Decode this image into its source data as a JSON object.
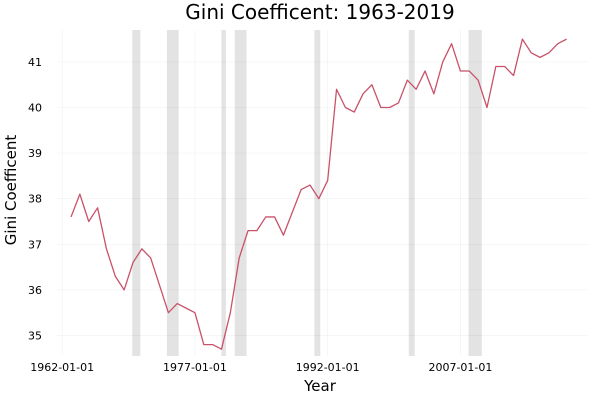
{
  "chart_data": {
    "type": "line",
    "title": "Gini Coefficent: 1963-2019",
    "xlabel": "Year",
    "ylabel": "Gini Coefficent",
    "xlim": [
      "1961-06-01",
      "2021-06-01"
    ],
    "ylim": [
      34.55,
      41.7
    ],
    "x_ticks": [
      {
        "value": "1962-01-01",
        "label": "1962-01-01"
      },
      {
        "value": "1977-01-01",
        "label": "1977-01-01"
      },
      {
        "value": "1992-01-01",
        "label": "1992-01-01"
      },
      {
        "value": "2007-01-01",
        "label": "2007-01-01"
      }
    ],
    "y_ticks": [
      35,
      36,
      37,
      38,
      39,
      40,
      41
    ],
    "grid": true,
    "legend": "none",
    "recessions": [
      [
        "1969-12-01",
        "1970-11-01"
      ],
      [
        "1973-11-01",
        "1975-03-01"
      ],
      [
        "1980-01-01",
        "1980-07-01"
      ],
      [
        "1981-07-01",
        "1982-11-01"
      ],
      [
        "1990-07-01",
        "1991-03-01"
      ],
      [
        "2001-03-01",
        "2001-11-01"
      ],
      [
        "2007-12-01",
        "2009-06-01"
      ]
    ],
    "series": [
      {
        "color": "#c8526a",
        "x": [
          "1963-01-01",
          "1964-01-01",
          "1965-01-01",
          "1966-01-01",
          "1967-01-01",
          "1968-01-01",
          "1969-01-01",
          "1970-01-01",
          "1971-01-01",
          "1972-01-01",
          "1973-01-01",
          "1974-01-01",
          "1975-01-01",
          "1976-01-01",
          "1977-01-01",
          "1978-01-01",
          "1979-01-01",
          "1980-01-01",
          "1981-01-01",
          "1982-01-01",
          "1983-01-01",
          "1984-01-01",
          "1985-01-01",
          "1986-01-01",
          "1987-01-01",
          "1988-01-01",
          "1989-01-01",
          "1990-01-01",
          "1991-01-01",
          "1992-01-01",
          "1993-01-01",
          "1994-01-01",
          "1995-01-01",
          "1996-01-01",
          "1997-01-01",
          "1998-01-01",
          "1999-01-01",
          "2000-01-01",
          "2001-01-01",
          "2002-01-01",
          "2003-01-01",
          "2004-01-01",
          "2005-01-01",
          "2006-01-01",
          "2007-01-01",
          "2008-01-01",
          "2009-01-01",
          "2010-01-01",
          "2011-01-01",
          "2012-01-01",
          "2013-01-01",
          "2014-01-01",
          "2015-01-01",
          "2016-01-01",
          "2017-01-01",
          "2018-01-01",
          "2019-01-01"
        ],
        "values": [
          37.6,
          38.1,
          37.5,
          37.8,
          36.9,
          36.3,
          36.0,
          36.6,
          36.9,
          36.7,
          36.1,
          35.5,
          35.7,
          35.6,
          35.5,
          34.8,
          34.8,
          34.7,
          35.5,
          36.7,
          37.3,
          37.3,
          37.6,
          37.6,
          37.2,
          37.7,
          38.2,
          38.3,
          38.0,
          38.4,
          40.4,
          40.0,
          39.9,
          40.3,
          40.5,
          40.0,
          40.0,
          40.1,
          40.6,
          40.4,
          40.8,
          40.3,
          41.0,
          41.4,
          40.8,
          40.8,
          40.6,
          40.0,
          40.9,
          40.9,
          40.7,
          41.5,
          41.2,
          41.1,
          41.2,
          41.4,
          41.5
        ]
      }
    ]
  }
}
